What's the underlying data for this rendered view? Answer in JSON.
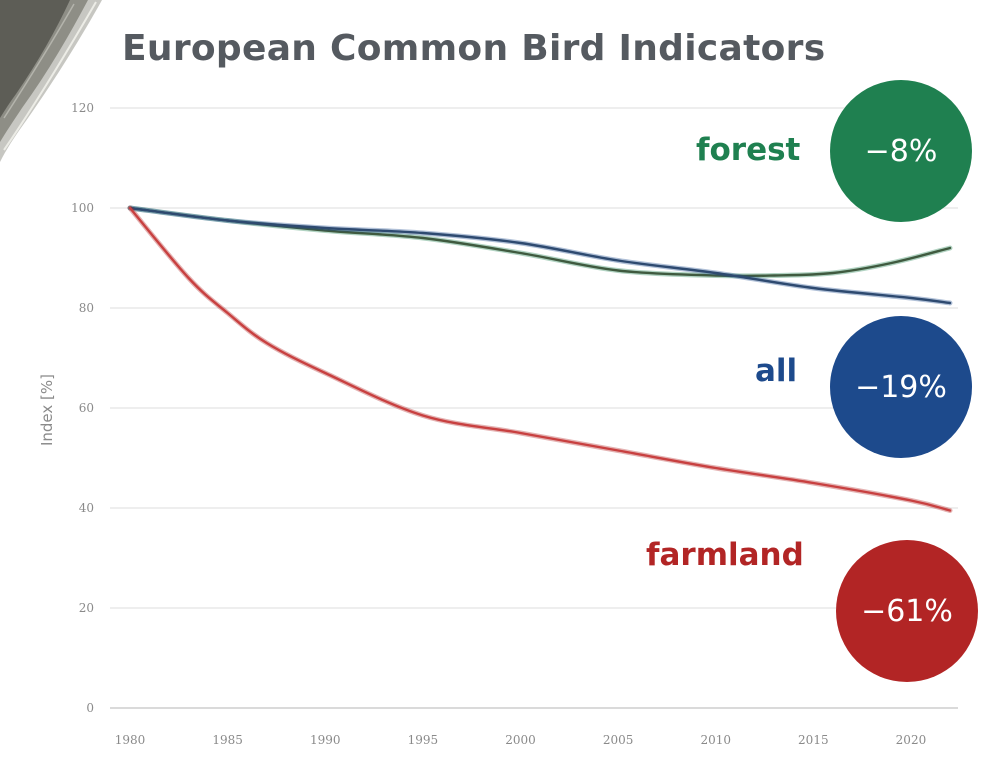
{
  "chart_data": {
    "type": "line",
    "title": "European Common Bird Indicators",
    "ylabel": "Index [%]",
    "xlabel": "",
    "xlim": [
      1980,
      2022
    ],
    "ylim": [
      0,
      120
    ],
    "x_ticks": [
      1980,
      1985,
      1990,
      1995,
      2000,
      2005,
      2010,
      2015,
      2020
    ],
    "y_ticks": [
      0,
      20,
      40,
      60,
      80,
      100,
      120
    ],
    "grid": true,
    "series": [
      {
        "name": "forest",
        "change": "−8%",
        "color": "#1f8050",
        "line_color": "#3f5a3f",
        "x": [
          1980,
          1985,
          1990,
          1995,
          2000,
          2005,
          2010,
          2013,
          2016,
          2019,
          2022
        ],
        "values": [
          100,
          97.5,
          95.5,
          94,
          91,
          87.5,
          86.5,
          86.5,
          87,
          89,
          92
        ]
      },
      {
        "name": "all",
        "change": "−19%",
        "color": "#1d4a8c",
        "line_color": "#2e4a70",
        "x": [
          1980,
          1985,
          1990,
          1995,
          2000,
          2005,
          2010,
          2015,
          2020,
          2022
        ],
        "values": [
          100,
          97.5,
          96,
          95,
          93,
          89.5,
          87,
          84,
          82,
          81
        ]
      },
      {
        "name": "farmland",
        "change": "−61%",
        "color": "#b22525",
        "line_color": "#c84040",
        "x": [
          1980,
          1983,
          1985,
          1987,
          1990,
          1995,
          2000,
          2005,
          2010,
          2015,
          2020,
          2022
        ],
        "values": [
          100,
          86,
          79,
          73,
          67,
          58.5,
          55,
          51.5,
          48,
          45,
          41.5,
          39.5
        ]
      }
    ]
  }
}
